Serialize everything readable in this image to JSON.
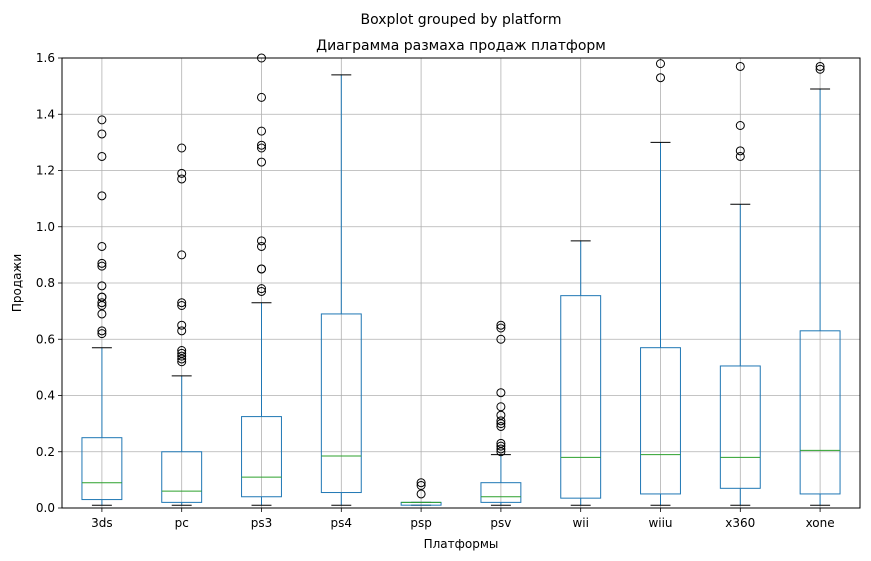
{
  "chart_data": {
    "type": "boxplot",
    "suptitle": "Boxplot grouped by platform",
    "title": "Диаграмма размаха продаж платформ",
    "xlabel": "Платформы",
    "ylabel": "Продажи",
    "ylim": [
      0,
      1.6
    ],
    "yticks": [
      "0.0",
      "0.2",
      "0.4",
      "0.6",
      "0.8",
      "1.0",
      "1.2",
      "1.4",
      "1.6"
    ],
    "grid": true,
    "colors": {
      "box": "#1f77b4",
      "median": "#2ca02c",
      "whisker": "#1f77b4",
      "cap": "#000000",
      "flier": "#000000",
      "grid": "#b0b0b0"
    },
    "categories": [
      "3ds",
      "pc",
      "ps3",
      "ps4",
      "psp",
      "psv",
      "wii",
      "wiiu",
      "x360",
      "xone"
    ],
    "boxes": [
      {
        "name": "3ds",
        "whislo": 0.01,
        "q1": 0.03,
        "med": 0.09,
        "q3": 0.25,
        "whishi": 0.57,
        "fliers": [
          0.62,
          0.63,
          0.69,
          0.72,
          0.73,
          0.75,
          0.75,
          0.79,
          0.86,
          0.87,
          0.93,
          1.11,
          1.25,
          1.33,
          1.38
        ]
      },
      {
        "name": "pc",
        "whislo": 0.01,
        "q1": 0.02,
        "med": 0.06,
        "q3": 0.2,
        "whishi": 0.47,
        "fliers": [
          0.52,
          0.53,
          0.54,
          0.55,
          0.56,
          0.63,
          0.65,
          0.72,
          0.73,
          0.9,
          1.17,
          1.19,
          1.28
        ]
      },
      {
        "name": "ps3",
        "whislo": 0.01,
        "q1": 0.04,
        "med": 0.11,
        "q3": 0.325,
        "whishi": 0.73,
        "fliers": [
          0.77,
          0.78,
          0.85,
          0.85,
          0.93,
          0.95,
          1.23,
          1.28,
          1.29,
          1.34,
          1.46,
          1.6
        ]
      },
      {
        "name": "ps4",
        "whislo": 0.01,
        "q1": 0.055,
        "med": 0.185,
        "q3": 0.69,
        "whishi": 1.54,
        "fliers": []
      },
      {
        "name": "psp",
        "whislo": 0.01,
        "q1": 0.01,
        "med": 0.02,
        "q3": 0.02,
        "whishi": 0.02,
        "fliers": [
          0.05,
          0.08,
          0.09
        ]
      },
      {
        "name": "psv",
        "whislo": 0.01,
        "q1": 0.02,
        "med": 0.04,
        "q3": 0.09,
        "whishi": 0.19,
        "fliers": [
          0.2,
          0.21,
          0.22,
          0.23,
          0.29,
          0.3,
          0.31,
          0.33,
          0.36,
          0.41,
          0.6,
          0.64,
          0.65
        ]
      },
      {
        "name": "wii",
        "whislo": 0.01,
        "q1": 0.035,
        "med": 0.18,
        "q3": 0.755,
        "whishi": 0.95,
        "fliers": []
      },
      {
        "name": "wiiu",
        "whislo": 0.01,
        "q1": 0.05,
        "med": 0.19,
        "q3": 0.57,
        "whishi": 1.3,
        "fliers": [
          1.53,
          1.58
        ]
      },
      {
        "name": "x360",
        "whislo": 0.01,
        "q1": 0.07,
        "med": 0.18,
        "q3": 0.505,
        "whishi": 1.08,
        "fliers": [
          1.25,
          1.27,
          1.36,
          1.57
        ]
      },
      {
        "name": "xone",
        "whislo": 0.01,
        "q1": 0.05,
        "med": 0.205,
        "q3": 0.63,
        "whishi": 1.49,
        "fliers": [
          1.56,
          1.57
        ]
      }
    ]
  }
}
